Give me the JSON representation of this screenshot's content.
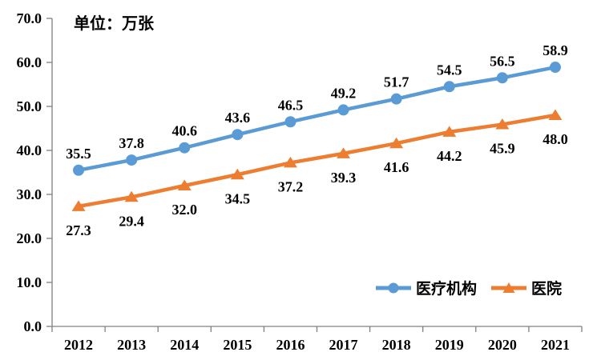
{
  "chart_data": {
    "type": "line",
    "title": "",
    "unit_label": "单位：万张",
    "xlabel": "",
    "ylabel": "",
    "categories": [
      "2012",
      "2013",
      "2014",
      "2015",
      "2016",
      "2017",
      "2018",
      "2019",
      "2020",
      "2021"
    ],
    "series": [
      {
        "name": "医疗机构",
        "color": "#5B9BD5",
        "marker": "circle",
        "label_position": "above",
        "values": [
          35.5,
          37.8,
          40.6,
          43.6,
          46.5,
          49.2,
          51.7,
          54.5,
          56.5,
          58.9
        ]
      },
      {
        "name": "医院",
        "color": "#ED7D31",
        "marker": "triangle",
        "label_position": "below",
        "values": [
          27.3,
          29.4,
          32.0,
          34.5,
          37.2,
          39.3,
          41.6,
          44.2,
          45.9,
          48.0
        ]
      }
    ],
    "ylim": [
      0,
      70
    ],
    "ytick_step": 10,
    "yticks": [
      "0.0",
      "10.0",
      "20.0",
      "30.0",
      "40.0",
      "50.0",
      "60.0",
      "70.0"
    ],
    "grid": false,
    "legend_position": "inside-bottom-right",
    "axis_color": "#808080",
    "text_color": "#000000",
    "background_color": "#ffffff"
  }
}
